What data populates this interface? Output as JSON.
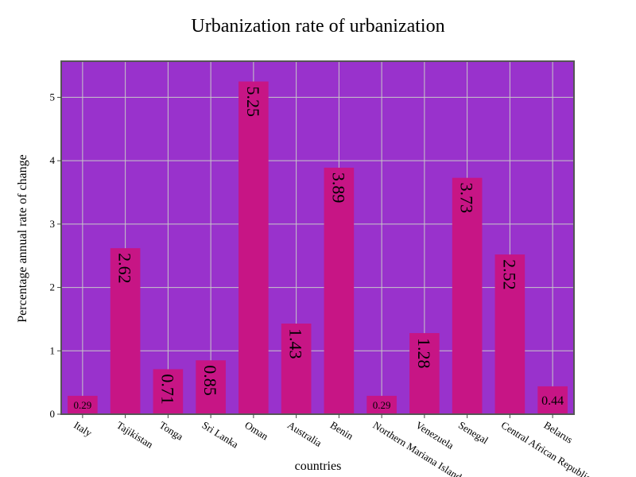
{
  "chart_data": {
    "type": "bar",
    "title": "Urbanization rate of urbanization",
    "xlabel": "countries",
    "ylabel": "Percentage annual rate of change",
    "categories": [
      "Italy",
      "Tajikistan",
      "Tonga",
      "Sri Lanka",
      "Oman",
      "Australia",
      "Benin",
      "Northern Mariana Islands",
      "Venezuela",
      "Senegal",
      "Central African Republic",
      "Belarus"
    ],
    "values": [
      0.29,
      2.62,
      0.71,
      0.85,
      5.25,
      1.43,
      3.89,
      0.29,
      1.28,
      3.73,
      2.52,
      0.44
    ],
    "data_labels": [
      "0.29",
      "2.62",
      "0.71",
      "0.85",
      "5.25",
      "1.43",
      "3.89",
      "0.29",
      "1.28",
      "3.73",
      "2.52",
      "0.44"
    ],
    "ylim": [
      0,
      5.57
    ],
    "yticks": [
      0,
      1,
      2,
      3,
      4,
      5
    ],
    "grid": true,
    "legend": "none",
    "colors": {
      "plot_background": "#9932CC",
      "bar": "#C71585",
      "grid": "#C8C8C8",
      "frame": "#555555",
      "text": "#000000"
    }
  }
}
